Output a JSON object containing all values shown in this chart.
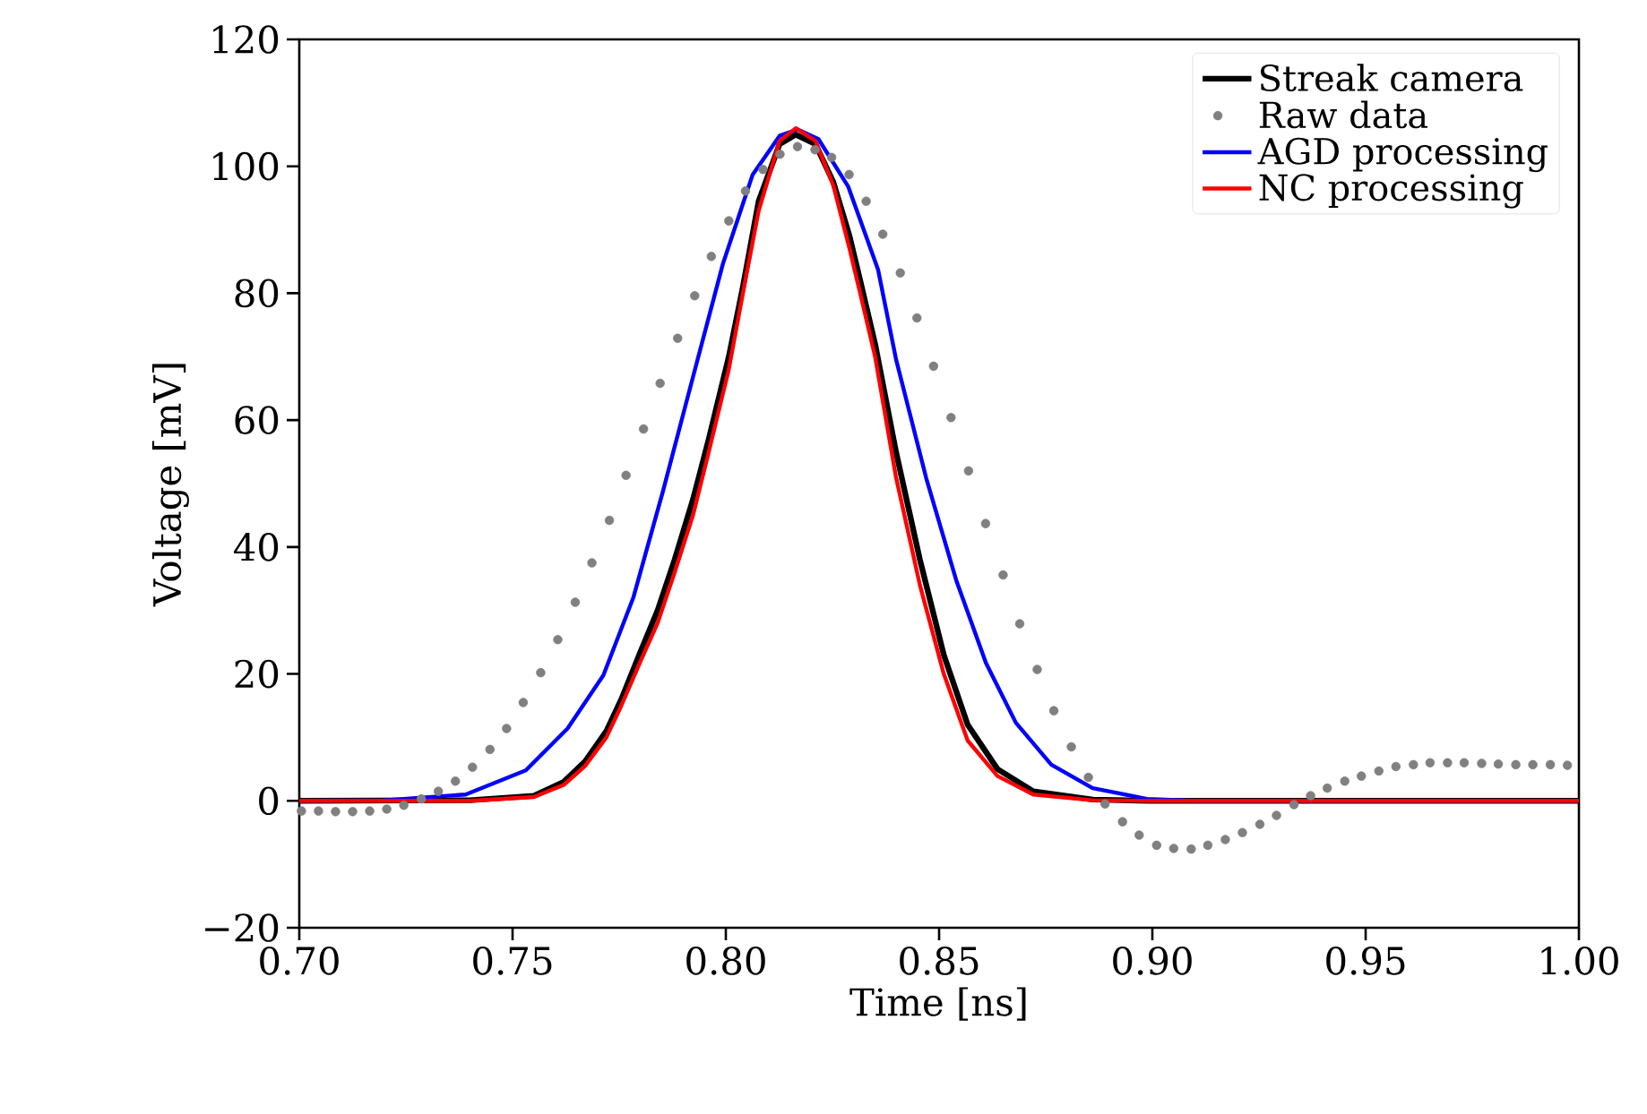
{
  "chart_data": {
    "type": "line",
    "xlabel": "Time [ns]",
    "ylabel": "Voltage [mV]",
    "xlim": [
      0.7,
      1.0
    ],
    "ylim": [
      -20,
      120
    ],
    "xticks": [
      {
        "value": 0.7,
        "label": "0.70"
      },
      {
        "value": 0.75,
        "label": "0.75"
      },
      {
        "value": 0.8,
        "label": "0.80"
      },
      {
        "value": 0.85,
        "label": "0.85"
      },
      {
        "value": 0.9,
        "label": "0.90"
      },
      {
        "value": 0.95,
        "label": "0.95"
      },
      {
        "value": 1.0,
        "label": "1.00"
      }
    ],
    "yticks": [
      {
        "value": -20,
        "label": "−20"
      },
      0,
      20,
      40,
      60,
      80,
      100,
      120
    ],
    "legend": "top right",
    "series": [
      {
        "name": "Streak camera",
        "color": "#000000",
        "x": [
          0.7,
          0.74,
          0.755,
          0.762,
          0.767,
          0.772,
          0.7755,
          0.78,
          0.784,
          0.788,
          0.7923,
          0.796,
          0.8007,
          0.804,
          0.8077,
          0.8126,
          0.8164,
          0.821,
          0.8252,
          0.829,
          0.8315,
          0.835,
          0.8399,
          0.8455,
          0.8511,
          0.8567,
          0.8637,
          0.8721,
          0.886,
          0.9,
          1.0
        ],
        "values": [
          0,
          0.1,
          0.8,
          3,
          6.2,
          11,
          16,
          23.5,
          30,
          38,
          47.5,
          57,
          70,
          81,
          94.5,
          103.5,
          105,
          103.5,
          97.5,
          89,
          82,
          72,
          55,
          38,
          23,
          12,
          5,
          1.5,
          0.2,
          0,
          0
        ]
      },
      {
        "name": "Raw data",
        "type": "scatter",
        "marker": "circle",
        "color": "#808080",
        "x": [
          0.7005,
          0.7045,
          0.7085,
          0.7125,
          0.7165,
          0.7205,
          0.7245,
          0.7286,
          0.7326,
          0.7366,
          0.7406,
          0.7447,
          0.7486,
          0.7525,
          0.7566,
          0.7606,
          0.7647,
          0.7686,
          0.7727,
          0.7766,
          0.7807,
          0.7846,
          0.7887,
          0.7927,
          0.7966,
          0.8007,
          0.8046,
          0.8087,
          0.8127,
          0.8168,
          0.8209,
          0.8248,
          0.8289,
          0.8329,
          0.8368,
          0.8409,
          0.8448,
          0.8487,
          0.8528,
          0.8569,
          0.8609,
          0.865,
          0.8689,
          0.873,
          0.8769,
          0.881,
          0.885,
          0.8889,
          0.893,
          0.8969,
          0.901,
          0.905,
          0.9091,
          0.913,
          0.9171,
          0.9211,
          0.9252,
          0.9291,
          0.9332,
          0.9371,
          0.941,
          0.9451,
          0.949,
          0.9531,
          0.9571,
          0.9612,
          0.9651,
          0.9692,
          0.9731,
          0.9772,
          0.9811,
          0.9852,
          0.9892,
          0.9933,
          0.9973
        ],
        "values": [
          -1.6,
          -1.6,
          -1.7,
          -1.7,
          -1.6,
          -1.3,
          -0.7,
          0.3,
          1.5,
          3.1,
          5.3,
          8.1,
          11.4,
          15.5,
          20.2,
          25.4,
          31.3,
          37.5,
          44.2,
          51.3,
          58.6,
          65.8,
          72.9,
          79.6,
          85.8,
          91.4,
          96.1,
          99.5,
          101.9,
          103.1,
          102.6,
          101.4,
          98.7,
          94.5,
          89.3,
          83.2,
          76.1,
          68.5,
          60.4,
          52.0,
          43.7,
          35.6,
          27.9,
          20.7,
          14.2,
          8.5,
          3.7,
          -0.5,
          -3.3,
          -5.4,
          -7.0,
          -7.5,
          -7.6,
          -7.0,
          -6.1,
          -5.0,
          -3.7,
          -2.3,
          -0.6,
          0.8,
          2.0,
          3.1,
          3.9,
          4.7,
          5.4,
          5.7,
          6.0,
          6.0,
          6.0,
          5.9,
          5.8,
          5.7,
          5.7,
          5.7,
          5.6
        ]
      },
      {
        "name": "AGD processing",
        "color": "#0000ff",
        "x": [
          0.7,
          0.72,
          0.739,
          0.7531,
          0.7629,
          0.7713,
          0.7783,
          0.7853,
          0.7923,
          0.7993,
          0.8063,
          0.8126,
          0.8168,
          0.8217,
          0.8287,
          0.8357,
          0.8399,
          0.847,
          0.854,
          0.861,
          0.868,
          0.8763,
          0.886,
          0.8987,
          0.91,
          1.0
        ],
        "values": [
          0,
          0.1,
          1.0,
          4.8,
          11.4,
          19.8,
          32.0,
          48.9,
          66.8,
          84.6,
          98.7,
          104.8,
          105.8,
          104.3,
          96.8,
          83.7,
          69.6,
          50.8,
          34.8,
          21.7,
          12.3,
          5.7,
          2.0,
          0.3,
          0,
          0
        ]
      },
      {
        "name": "NC processing",
        "color": "#ff0000",
        "x": [
          0.7,
          0.74,
          0.755,
          0.762,
          0.767,
          0.772,
          0.7755,
          0.78,
          0.784,
          0.788,
          0.7923,
          0.796,
          0.8007,
          0.804,
          0.8077,
          0.8126,
          0.8164,
          0.821,
          0.8252,
          0.829,
          0.8315,
          0.835,
          0.8399,
          0.8455,
          0.8511,
          0.8567,
          0.8637,
          0.8721,
          0.886,
          0.9,
          1.0
        ],
        "values": [
          0,
          0,
          0.6,
          2.5,
          5.5,
          10,
          15,
          22,
          28,
          36,
          45,
          55,
          68,
          80,
          93,
          104,
          106,
          104,
          97,
          87,
          80,
          70,
          51,
          34,
          20,
          9.5,
          3.9,
          1.0,
          0.1,
          0,
          0
        ]
      }
    ]
  }
}
